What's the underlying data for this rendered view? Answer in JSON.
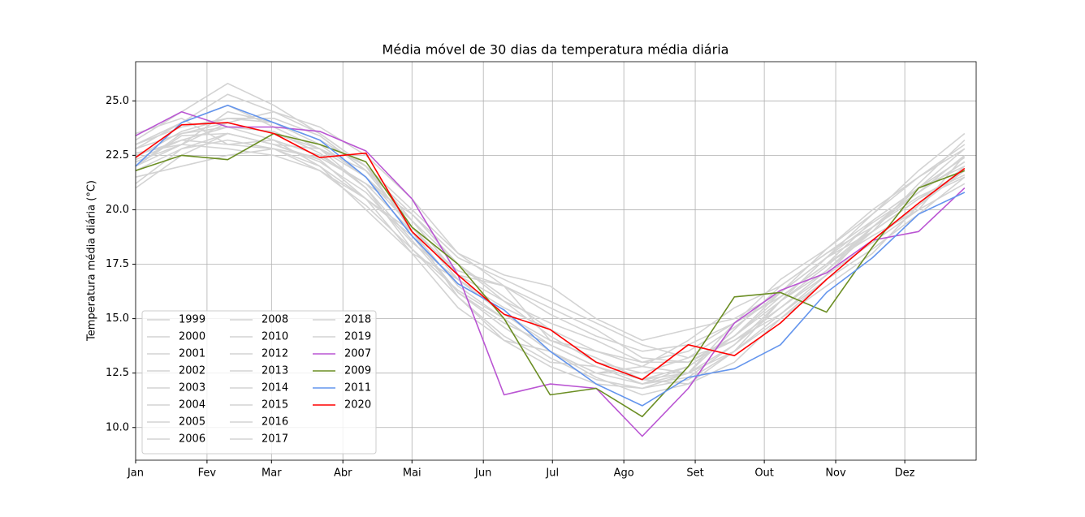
{
  "chart_data": {
    "type": "line",
    "title": "Média móvel de 30 dias da temperatura média diária",
    "y_label": "Temperatura média diária (°C)",
    "x": [
      1,
      21,
      41,
      61,
      81,
      101,
      121,
      141,
      161,
      181,
      201,
      221,
      241,
      261,
      281,
      301,
      321,
      341,
      361
    ],
    "xlim": [
      1,
      366
    ],
    "xticks": [
      {
        "value": 1,
        "label": "Jan"
      },
      {
        "value": 32,
        "label": "Fev"
      },
      {
        "value": 60,
        "label": "Mar"
      },
      {
        "value": 91,
        "label": "Abr"
      },
      {
        "value": 121,
        "label": "Mai"
      },
      {
        "value": 152,
        "label": "Jun"
      },
      {
        "value": 182,
        "label": "Jul"
      },
      {
        "value": 213,
        "label": "Ago"
      },
      {
        "value": 244,
        "label": "Set"
      },
      {
        "value": 274,
        "label": "Out"
      },
      {
        "value": 305,
        "label": "Nov"
      },
      {
        "value": 335,
        "label": "Dez"
      }
    ],
    "ylim": [
      8.5,
      26.8
    ],
    "yticks": [
      {
        "value": 10,
        "label": "10.0"
      },
      12.5,
      {
        "value": 15,
        "label": "15.0"
      },
      17.5,
      {
        "value": 20,
        "label": "20.0"
      },
      22.5,
      {
        "value": 25,
        "label": "25.0"
      }
    ],
    "grid": true,
    "legend": "lower left",
    "series": [
      {
        "name": "1999",
        "color": "#d3d3d3",
        "values": [
          21.0,
          22.5,
          23.5,
          23.0,
          22.3,
          20.5,
          18.0,
          16.8,
          15.5,
          14.5,
          13.5,
          13.0,
          13.5,
          14.8,
          16.0,
          17.5,
          19.0,
          20.5,
          21.8
        ]
      },
      {
        "name": "2000",
        "color": "#d3d3d3",
        "values": [
          22.0,
          23.0,
          24.5,
          24.0,
          23.0,
          21.5,
          19.5,
          17.0,
          16.5,
          14.0,
          13.5,
          12.8,
          12.5,
          13.8,
          15.5,
          17.0,
          18.5,
          20.0,
          22.5
        ]
      },
      {
        "name": "2001",
        "color": "#d3d3d3",
        "values": [
          23.0,
          24.0,
          25.3,
          24.5,
          23.5,
          22.0,
          19.0,
          16.0,
          14.2,
          13.0,
          12.8,
          12.0,
          12.5,
          14.5,
          16.5,
          18.0,
          19.5,
          21.0,
          22.8
        ]
      },
      {
        "name": "2002",
        "color": "#d3d3d3",
        "values": [
          21.5,
          22.0,
          22.5,
          22.8,
          22.0,
          20.0,
          18.0,
          15.5,
          14.0,
          13.5,
          12.3,
          11.5,
          12.0,
          13.0,
          15.0,
          16.8,
          18.2,
          19.8,
          21.5
        ]
      },
      {
        "name": "2003",
        "color": "#d3d3d3",
        "values": [
          22.8,
          23.5,
          24.0,
          23.5,
          22.8,
          21.5,
          19.2,
          17.0,
          15.8,
          14.8,
          14.0,
          13.0,
          13.0,
          14.0,
          15.2,
          17.0,
          19.2,
          20.8,
          22.2
        ]
      },
      {
        "name": "2004",
        "color": "#d3d3d3",
        "values": [
          23.5,
          24.2,
          23.0,
          22.8,
          21.8,
          20.2,
          18.2,
          16.3,
          15.0,
          13.5,
          12.5,
          12.0,
          12.8,
          14.2,
          16.0,
          17.5,
          19.5,
          21.0,
          22.0
        ]
      },
      {
        "name": "2005",
        "color": "#d3d3d3",
        "values": [
          22.2,
          23.0,
          24.0,
          24.5,
          23.8,
          22.5,
          20.5,
          18.0,
          17.0,
          16.5,
          15.0,
          14.0,
          14.5,
          15.0,
          16.2,
          17.8,
          19.0,
          20.5,
          21.5
        ]
      },
      {
        "name": "2006",
        "color": "#d3d3d3",
        "values": [
          21.8,
          22.8,
          23.5,
          23.0,
          22.2,
          20.8,
          18.5,
          16.8,
          15.2,
          14.0,
          13.2,
          12.2,
          12.5,
          13.5,
          15.0,
          16.5,
          18.0,
          20.2,
          22.0
        ]
      },
      {
        "name": "2008",
        "color": "#d3d3d3",
        "values": [
          22.5,
          23.2,
          23.0,
          23.2,
          22.0,
          20.5,
          19.0,
          16.5,
          15.0,
          13.5,
          12.5,
          12.8,
          14.0,
          15.5,
          16.5,
          18.0,
          19.2,
          20.8,
          22.5
        ]
      },
      {
        "name": "2010",
        "color": "#d3d3d3",
        "values": [
          23.2,
          24.5,
          25.8,
          24.8,
          23.5,
          22.0,
          19.5,
          17.5,
          16.0,
          14.5,
          13.0,
          12.2,
          12.0,
          13.5,
          15.8,
          17.2,
          19.0,
          21.2,
          23.2
        ]
      },
      {
        "name": "2012",
        "color": "#d3d3d3",
        "values": [
          22.0,
          23.5,
          23.8,
          23.2,
          22.5,
          21.2,
          19.0,
          17.2,
          16.5,
          15.2,
          14.2,
          13.5,
          13.8,
          14.8,
          16.0,
          17.5,
          18.8,
          20.0,
          21.2
        ]
      },
      {
        "name": "2013",
        "color": "#d3d3d3",
        "values": [
          22.6,
          23.0,
          22.8,
          22.5,
          21.8,
          20.5,
          18.8,
          16.2,
          14.8,
          13.8,
          12.8,
          12.0,
          12.3,
          13.8,
          15.8,
          17.8,
          19.8,
          21.5,
          23.0
        ]
      },
      {
        "name": "2014",
        "color": "#d3d3d3",
        "values": [
          23.0,
          23.8,
          24.2,
          24.0,
          23.2,
          22.0,
          20.0,
          18.0,
          16.5,
          15.5,
          14.5,
          13.2,
          13.0,
          14.2,
          16.2,
          18.2,
          20.0,
          21.5,
          22.8
        ]
      },
      {
        "name": "2015",
        "color": "#d3d3d3",
        "values": [
          22.3,
          23.2,
          23.8,
          23.6,
          22.6,
          21.0,
          18.6,
          16.2,
          14.6,
          13.2,
          12.2,
          11.8,
          12.2,
          13.5,
          15.2,
          16.8,
          18.6,
          20.2,
          21.8
        ]
      },
      {
        "name": "2016",
        "color": "#d3d3d3",
        "values": [
          21.2,
          22.8,
          23.2,
          22.8,
          22.4,
          21.2,
          19.8,
          17.8,
          16.8,
          15.8,
          14.8,
          13.8,
          13.2,
          14.0,
          15.5,
          17.2,
          19.2,
          21.0,
          22.4
        ]
      },
      {
        "name": "2017",
        "color": "#d3d3d3",
        "values": [
          22.8,
          24.0,
          24.8,
          23.8,
          22.8,
          21.0,
          18.2,
          16.0,
          14.0,
          12.8,
          12.0,
          11.8,
          12.5,
          14.8,
          16.8,
          18.2,
          19.8,
          21.8,
          23.5
        ]
      },
      {
        "name": "2018",
        "color": "#d3d3d3",
        "values": [
          22.0,
          23.4,
          23.5,
          23.0,
          22.8,
          21.8,
          19.8,
          17.5,
          15.8,
          14.2,
          13.0,
          12.5,
          13.2,
          14.6,
          16.2,
          17.8,
          19.4,
          20.8,
          22.2
        ]
      },
      {
        "name": "2019",
        "color": "#d3d3d3",
        "values": [
          22.4,
          23.6,
          24.2,
          24.2,
          23.4,
          21.8,
          19.2,
          16.8,
          15.2,
          13.8,
          12.8,
          12.2,
          12.8,
          14.2,
          15.8,
          17.4,
          19.2,
          20.6,
          21.6
        ]
      },
      {
        "name": "2007",
        "color": "#ba55d3",
        "values": [
          23.4,
          24.5,
          23.8,
          23.8,
          23.6,
          22.7,
          20.5,
          17.0,
          11.5,
          12.0,
          11.8,
          9.6,
          11.8,
          14.8,
          16.3,
          17.1,
          18.6,
          19.0,
          21.0
        ]
      },
      {
        "name": "2009",
        "color": "#6b8e23",
        "values": [
          21.8,
          22.5,
          22.3,
          23.5,
          23.0,
          22.2,
          19.2,
          17.5,
          15.0,
          11.5,
          11.8,
          10.5,
          12.8,
          16.0,
          16.2,
          15.3,
          18.3,
          21.0,
          21.8
        ]
      },
      {
        "name": "2011",
        "color": "#6495ed",
        "values": [
          22.0,
          24.0,
          24.8,
          24.0,
          23.2,
          21.5,
          18.8,
          16.6,
          15.4,
          13.5,
          12.0,
          11.0,
          12.3,
          12.7,
          13.8,
          16.2,
          17.8,
          19.8,
          20.8
        ]
      },
      {
        "name": "2020",
        "color": "#ff0000",
        "values": [
          22.4,
          23.9,
          24.0,
          23.5,
          22.4,
          22.6,
          19.0,
          17.0,
          15.2,
          14.5,
          13.0,
          12.2,
          13.8,
          13.3,
          14.8,
          16.8,
          18.6,
          20.3,
          21.9
        ]
      }
    ]
  }
}
